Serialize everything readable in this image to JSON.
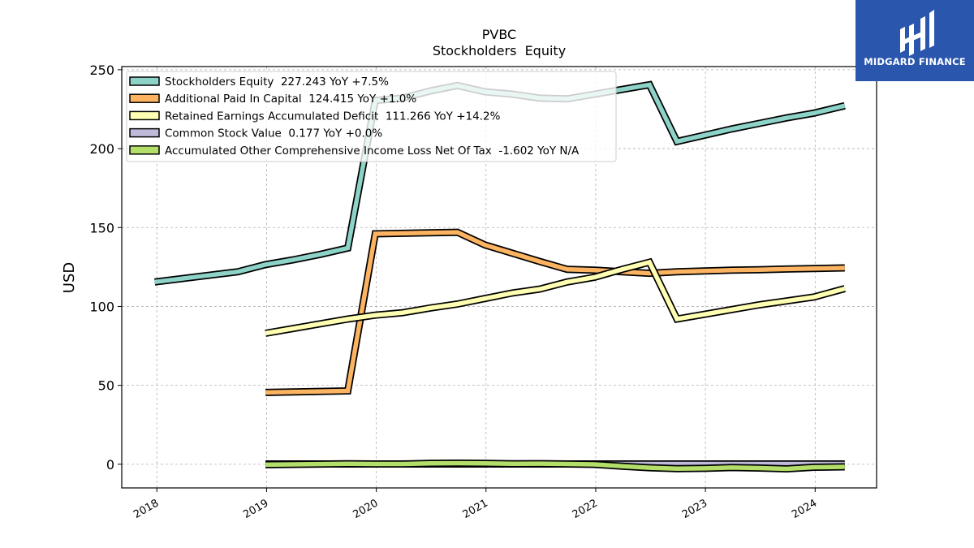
{
  "chart_data": {
    "type": "line",
    "title": "PVBC",
    "subtitle": "Stockholders  Equity",
    "xlabel": "",
    "ylabel": "USD",
    "ylim": [
      -15,
      252
    ],
    "xlim": [
      2017.68,
      2024.56
    ],
    "x_ticks": [
      2018,
      2019,
      2020,
      2021,
      2022,
      2023,
      2024
    ],
    "x_tick_labels": [
      "2018",
      "2019",
      "2020",
      "2021",
      "2022",
      "2023",
      "2024"
    ],
    "y_ticks": [
      0,
      50,
      100,
      150,
      200,
      250
    ],
    "y_tick_labels": [
      "0",
      "50",
      "100",
      "150",
      "200",
      "250"
    ],
    "grid": true,
    "legend_position": "top-left",
    "series": [
      {
        "name": "Stockholders Equity  227.243 YoY +7.5%",
        "color": "#8dd3c7",
        "x": [
          2017.98,
          2018.74,
          2018.99,
          2019.24,
          2019.49,
          2019.74,
          2019.99,
          2020.24,
          2020.49,
          2020.74,
          2020.99,
          2021.24,
          2021.49,
          2021.74,
          2021.99,
          2022.24,
          2022.49,
          2022.74,
          2022.99,
          2023.24,
          2023.49,
          2023.74,
          2023.99,
          2024.27
        ],
        "values": [
          115.5,
          122.0,
          126.5,
          129.5,
          133.0,
          137.0,
          230.5,
          232.0,
          236.5,
          240.0,
          236.0,
          234.5,
          232.0,
          231.5,
          234.5,
          237.5,
          240.5,
          204.5,
          208.5,
          212.5,
          216.0,
          219.5,
          222.5,
          227.2
        ]
      },
      {
        "name": "Additional Paid In Capital  124.415 YoY +1.0%",
        "color": "#fdb462",
        "x": [
          2018.99,
          2019.74,
          2019.99,
          2020.74,
          2020.99,
          2021.49,
          2021.74,
          2021.99,
          2022.49,
          2022.74,
          2022.99,
          2023.24,
          2023.49,
          2023.74,
          2023.99,
          2024.27
        ],
        "values": [
          45.5,
          46.5,
          146.0,
          147.0,
          139.0,
          128.5,
          123.5,
          123.0,
          121.0,
          122.0,
          122.5,
          123.0,
          123.3,
          123.7,
          124.0,
          124.4
        ]
      },
      {
        "name": "Retained Earnings Accumulated Deficit  111.266 YoY +14.2%",
        "color": "#ffffb3",
        "x": [
          2018.99,
          2019.24,
          2019.49,
          2019.74,
          2019.99,
          2020.24,
          2020.49,
          2020.74,
          2020.99,
          2021.24,
          2021.49,
          2021.74,
          2021.99,
          2022.24,
          2022.49,
          2022.74,
          2022.99,
          2023.24,
          2023.49,
          2023.74,
          2023.99,
          2024.27
        ],
        "values": [
          83.0,
          86.0,
          89.0,
          92.0,
          94.5,
          96.0,
          99.0,
          101.5,
          105.0,
          108.5,
          111.0,
          115.5,
          118.5,
          123.5,
          128.0,
          92.0,
          95.0,
          98.0,
          101.0,
          103.5,
          106.0,
          111.3
        ]
      },
      {
        "name": "Common Stock Value  0.177 YoY +0.0%",
        "color": "#bebada",
        "x": [
          2018.99,
          2019.49,
          2019.99,
          2020.49,
          2020.99,
          2021.49,
          2021.99,
          2022.49,
          2022.99,
          2023.49,
          2023.99,
          2024.27
        ],
        "values": [
          0.2,
          0.2,
          0.2,
          0.2,
          0.2,
          0.2,
          0.2,
          0.2,
          0.2,
          0.18,
          0.177,
          0.177
        ]
      },
      {
        "name": "Accumulated Other Comprehensive Income Loss Net Of Tax  -1.602 YoY N/A",
        "color": "#b3de69",
        "x": [
          2018.99,
          2019.24,
          2019.49,
          2019.74,
          2019.99,
          2020.24,
          2020.49,
          2020.74,
          2020.99,
          2021.24,
          2021.49,
          2021.74,
          2021.99,
          2022.24,
          2022.49,
          2022.74,
          2022.99,
          2023.24,
          2023.49,
          2023.74,
          2023.99,
          2024.27
        ],
        "values": [
          -0.3,
          -0.1,
          0.1,
          0.3,
          0.2,
          0.2,
          0.6,
          0.7,
          0.6,
          0.3,
          0.4,
          0.2,
          -0.1,
          -1.2,
          -2.2,
          -2.8,
          -2.6,
          -2.1,
          -2.4,
          -2.9,
          -1.9,
          -1.6
        ]
      }
    ]
  },
  "logo": {
    "text": "MIDGARD FINANCE",
    "bg_color": "#2a56ad"
  }
}
